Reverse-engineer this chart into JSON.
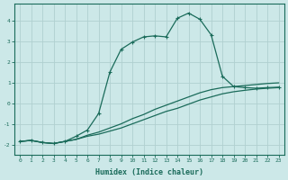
{
  "xlabel": "Humidex (Indice chaleur)",
  "background_color": "#cce8e8",
  "grid_color": "#b0d0d0",
  "line_color": "#1a6b5a",
  "xlim": [
    -0.5,
    23.5
  ],
  "ylim": [
    -2.5,
    4.8
  ],
  "yticks": [
    -2,
    -1,
    0,
    1,
    2,
    3,
    4
  ],
  "xticks": [
    0,
    1,
    2,
    3,
    4,
    5,
    6,
    7,
    8,
    9,
    10,
    11,
    12,
    13,
    14,
    15,
    16,
    17,
    18,
    19,
    20,
    21,
    22,
    23
  ],
  "series": [
    {
      "x": [
        0,
        1,
        2,
        3,
        4,
        5,
        6,
        7,
        8,
        9,
        10,
        11,
        12,
        13,
        14,
        15,
        16,
        17,
        18,
        19,
        20,
        21,
        22,
        23
      ],
      "y": [
        -1.85,
        -1.8,
        -1.9,
        -1.95,
        -1.85,
        -1.75,
        -1.6,
        -1.5,
        -1.35,
        -1.2,
        -1.0,
        -0.8,
        -0.6,
        -0.4,
        -0.25,
        -0.05,
        0.15,
        0.3,
        0.45,
        0.55,
        0.62,
        0.68,
        0.72,
        0.75
      ],
      "marker": null,
      "linestyle": "-",
      "linewidth": 0.9
    },
    {
      "x": [
        0,
        1,
        2,
        3,
        4,
        5,
        6,
        7,
        8,
        9,
        10,
        11,
        12,
        13,
        14,
        15,
        16,
        17,
        18,
        19,
        20,
        21,
        22,
        23
      ],
      "y": [
        -1.85,
        -1.8,
        -1.9,
        -1.95,
        -1.85,
        -1.75,
        -1.55,
        -1.4,
        -1.2,
        -1.0,
        -0.75,
        -0.55,
        -0.3,
        -0.1,
        0.1,
        0.3,
        0.5,
        0.65,
        0.75,
        0.8,
        0.85,
        0.9,
        0.95,
        0.98
      ],
      "marker": null,
      "linestyle": "-",
      "linewidth": 0.9
    },
    {
      "x": [
        0,
        1,
        2,
        3,
        4,
        5,
        6,
        7,
        8,
        9,
        10,
        11,
        12,
        13,
        14,
        15,
        16,
        17,
        18,
        19,
        20,
        21,
        22,
        23
      ],
      "y": [
        -1.85,
        -1.8,
        -1.9,
        -1.95,
        -1.85,
        -1.6,
        -1.3,
        -0.5,
        1.5,
        2.6,
        2.95,
        3.2,
        3.25,
        3.2,
        4.1,
        4.35,
        4.05,
        3.3,
        1.3,
        0.8,
        0.75,
        0.72,
        0.75,
        0.77
      ],
      "marker": "+",
      "linestyle": "-",
      "linewidth": 0.9
    }
  ]
}
